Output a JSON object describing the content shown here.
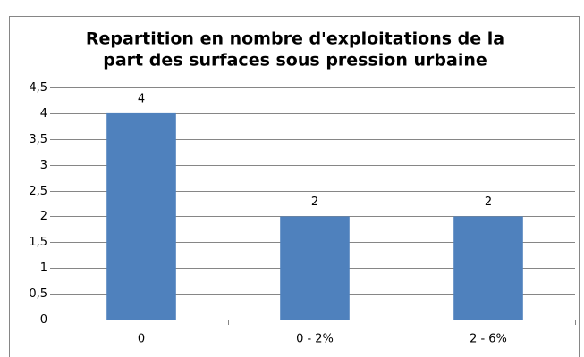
{
  "chart_data": {
    "type": "bar",
    "title": [
      "Repartition en nombre d'exploitations de la",
      "part des surfaces sous pression urbaine"
    ],
    "categories": [
      "0",
      "0 - 2%",
      "2 - 6%"
    ],
    "values": [
      4,
      2,
      2
    ],
    "color": "#4f81bd",
    "ylim": [
      0,
      4.5
    ],
    "yticks": [
      0,
      {
        "value": 0.5,
        "label": "0,5"
      },
      1,
      {
        "value": 1.5,
        "label": "1,5"
      },
      2,
      {
        "value": 2.5,
        "label": "2,5"
      },
      3,
      {
        "value": 3.5,
        "label": "3,5"
      },
      4,
      {
        "value": 4.5,
        "label": "4,5"
      }
    ],
    "grid": true
  }
}
